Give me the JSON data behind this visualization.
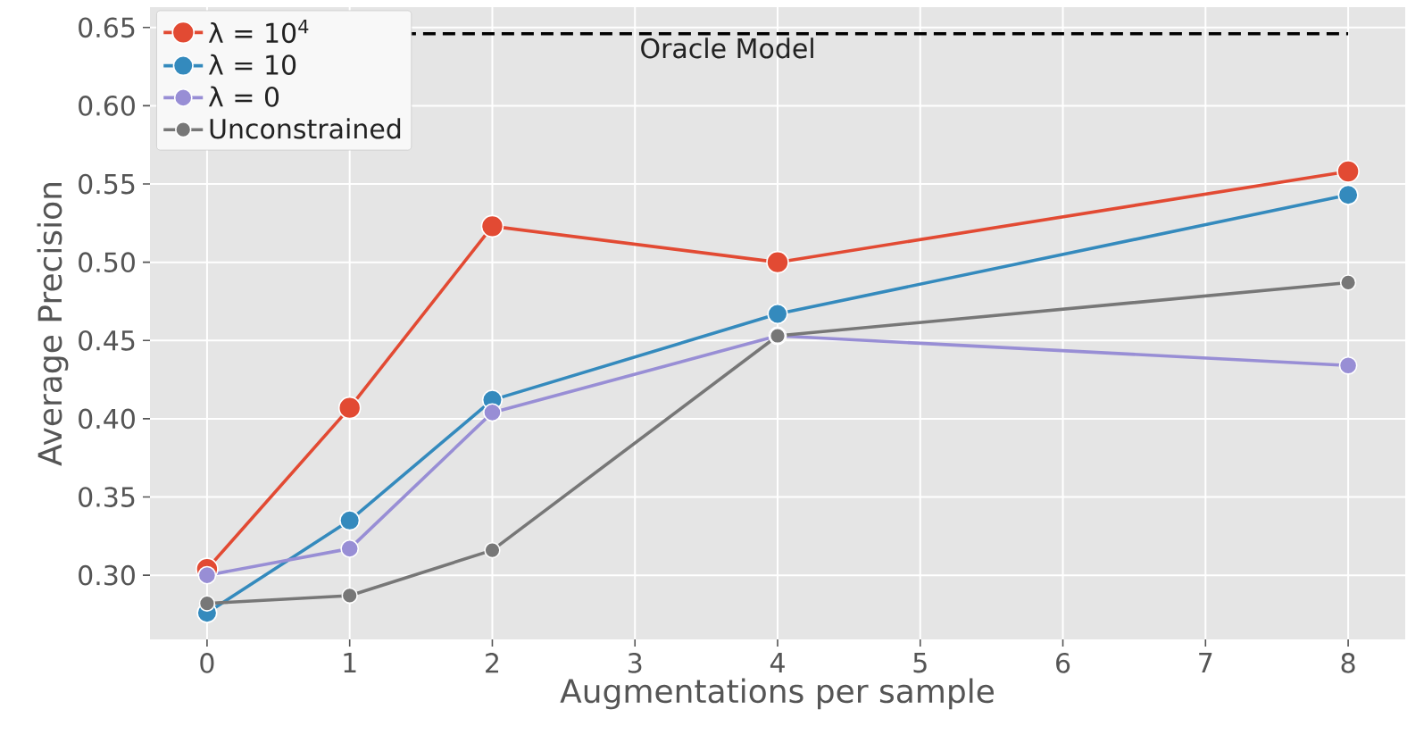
{
  "chart_data": {
    "type": "line",
    "xlabel": "Augmentations per sample",
    "ylabel": "Average Precision",
    "x": [
      0,
      1,
      2,
      4,
      8
    ],
    "series": [
      {
        "name": "λ = 10$^{4}$",
        "color": "#e24a33",
        "values": [
          0.304,
          0.407,
          0.523,
          0.5,
          0.558
        ]
      },
      {
        "name": "λ = 10",
        "color": "#348abd",
        "values": [
          0.276,
          0.335,
          0.412,
          0.467,
          0.543
        ]
      },
      {
        "name": "λ = 0",
        "color": "#988ed5",
        "values": [
          0.3,
          0.317,
          0.404,
          0.453,
          0.434
        ]
      },
      {
        "name": "Unconstrained",
        "color": "#777777",
        "values": [
          0.282,
          0.287,
          0.316,
          0.453,
          0.487
        ]
      }
    ],
    "ref_lines": [
      {
        "axis": "y",
        "value": 0.646,
        "label": "Oracle Model",
        "color": "#000000",
        "line_style": "dashed"
      }
    ],
    "xlim": [
      -0.4,
      8.4
    ],
    "ylim": [
      0.259,
      0.663
    ],
    "xticks": [
      0,
      1,
      2,
      3,
      4,
      5,
      6,
      7,
      8
    ],
    "yticks": [
      {
        "value": 0.3,
        "label": "0.30"
      },
      {
        "value": 0.35,
        "label": "0.35"
      },
      {
        "value": 0.4,
        "label": "0.40"
      },
      {
        "value": 0.45,
        "label": "0.45"
      },
      {
        "value": 0.5,
        "label": "0.50"
      },
      {
        "value": 0.55,
        "label": "0.55"
      },
      {
        "value": 0.6,
        "label": "0.60"
      },
      {
        "value": 0.65,
        "label": "0.65"
      }
    ],
    "grid": true,
    "legend": "top left",
    "marker": "circle",
    "line_style": "solid"
  }
}
